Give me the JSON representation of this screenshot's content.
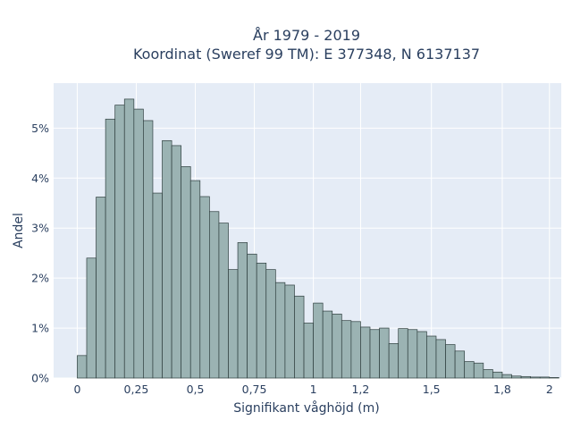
{
  "chart_data": {
    "type": "bar",
    "title_lines": [
      "År 1979 - 2019",
      "Koordinat (Sweref 99 TM): E 377348, N 6137137"
    ],
    "xlabel": "Signifikant våghöjd (m)",
    "ylabel": "Andel",
    "xlim": [
      -0.1,
      2.05
    ],
    "ylim": [
      0,
      0.059
    ],
    "x_ticks": [
      0,
      0.25,
      0.5,
      0.75,
      1,
      1.2,
      1.5,
      1.8,
      2
    ],
    "x_tick_labels": [
      "0",
      "0,25",
      "0,5",
      "0,75",
      "1",
      "1,2",
      "1,5",
      "1,8",
      "2"
    ],
    "y_ticks": [
      0,
      0.01,
      0.02,
      0.03,
      0.04,
      0.05
    ],
    "y_tick_labels": [
      "0%",
      "1%",
      "2%",
      "3%",
      "4%",
      "5%"
    ],
    "bin_start": 0,
    "bin_width": 0.04,
    "values": [
      0.0045,
      0.024,
      0.0362,
      0.0518,
      0.0546,
      0.0558,
      0.0538,
      0.0515,
      0.037,
      0.0475,
      0.0465,
      0.0423,
      0.0395,
      0.0363,
      0.0333,
      0.031,
      0.0217,
      0.0271,
      0.0248,
      0.023,
      0.0217,
      0.0191,
      0.0186,
      0.0164,
      0.011,
      0.015,
      0.0134,
      0.0128,
      0.0115,
      0.0113,
      0.0102,
      0.0097,
      0.01,
      0.0069,
      0.0099,
      0.0097,
      0.0093,
      0.0084,
      0.0077,
      0.0067,
      0.0054,
      0.0033,
      0.003,
      0.0017,
      0.0012,
      0.0007,
      0.0004,
      0.0003,
      0.0002,
      0.0002,
      0.0001
    ],
    "grid": true,
    "colors": {
      "plot_bg": "#e5ecf6",
      "bar_fill": "#9bb3b3",
      "bar_stroke": "#2f3f3f",
      "grid": "#ffffff",
      "text": "#2a3f5f"
    }
  }
}
